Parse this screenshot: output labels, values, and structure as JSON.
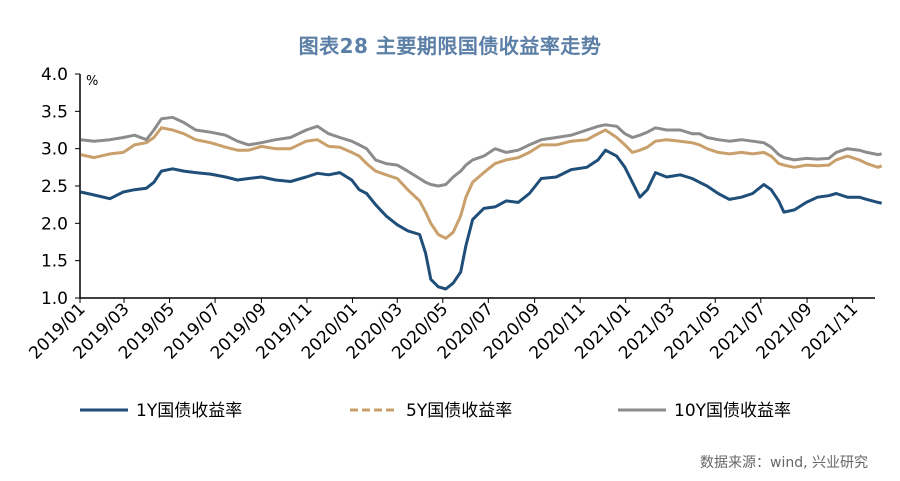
{
  "title": "图表28  主要期限国债收益率走势",
  "source": "数据来源：wind, 兴业研究",
  "chart_data": {
    "type": "line",
    "ylabel": "%",
    "ylim": [
      1.0,
      4.0
    ],
    "yticks": [
      "1.0",
      "1.5",
      "2.0",
      "2.5",
      "3.0",
      "3.5",
      "4.0"
    ],
    "xlim": [
      "2019/01",
      "2021/12"
    ],
    "xticks": [
      "2019/01",
      "2019/03",
      "2019/05",
      "2019/07",
      "2019/09",
      "2019/11",
      "2020/01",
      "2020/03",
      "2020/05",
      "2020/07",
      "2020/09",
      "2020/11",
      "2021/01",
      "2021/03",
      "2021/05",
      "2021/07",
      "2021/09",
      "2021/11"
    ],
    "grid": false,
    "legend_position": "bottom",
    "series": [
      {
        "name": "1Y国债收益率",
        "color": "#1f4e79",
        "points": [
          [
            "2019/01/02",
            2.42
          ],
          [
            "2019/01/20",
            2.38
          ],
          [
            "2019/02/10",
            2.33
          ],
          [
            "2019/02/28",
            2.42
          ],
          [
            "2019/03/15",
            2.45
          ],
          [
            "2019/03/31",
            2.47
          ],
          [
            "2019/04/10",
            2.55
          ],
          [
            "2019/04/20",
            2.7
          ],
          [
            "2019/05/05",
            2.73
          ],
          [
            "2019/05/20",
            2.7
          ],
          [
            "2019/06/05",
            2.68
          ],
          [
            "2019/06/25",
            2.66
          ],
          [
            "2019/07/15",
            2.62
          ],
          [
            "2019/07/31",
            2.58
          ],
          [
            "2019/08/15",
            2.6
          ],
          [
            "2019/09/01",
            2.62
          ],
          [
            "2019/09/20",
            2.58
          ],
          [
            "2019/10/10",
            2.56
          ],
          [
            "2019/10/31",
            2.62
          ],
          [
            "2019/11/15",
            2.67
          ],
          [
            "2019/11/30",
            2.65
          ],
          [
            "2019/12/15",
            2.68
          ],
          [
            "2019/12/31",
            2.58
          ],
          [
            "2020/01/10",
            2.45
          ],
          [
            "2020/01/20",
            2.4
          ],
          [
            "2020/02/01",
            2.25
          ],
          [
            "2020/02/15",
            2.1
          ],
          [
            "2020/03/01",
            1.98
          ],
          [
            "2020/03/15",
            1.9
          ],
          [
            "2020/03/31",
            1.85
          ],
          [
            "2020/04/08",
            1.6
          ],
          [
            "2020/04/15",
            1.25
          ],
          [
            "2020/04/25",
            1.15
          ],
          [
            "2020/05/05",
            1.12
          ],
          [
            "2020/05/15",
            1.2
          ],
          [
            "2020/05/25",
            1.35
          ],
          [
            "2020/06/01",
            1.7
          ],
          [
            "2020/06/10",
            2.05
          ],
          [
            "2020/06/25",
            2.2
          ],
          [
            "2020/07/10",
            2.22
          ],
          [
            "2020/07/25",
            2.3
          ],
          [
            "2020/08/10",
            2.28
          ],
          [
            "2020/08/25",
            2.4
          ],
          [
            "2020/09/10",
            2.6
          ],
          [
            "2020/09/30",
            2.62
          ],
          [
            "2020/10/20",
            2.72
          ],
          [
            "2020/11/10",
            2.75
          ],
          [
            "2020/11/25",
            2.85
          ],
          [
            "2020/12/05",
            2.98
          ],
          [
            "2020/12/20",
            2.9
          ],
          [
            "2020/12/31",
            2.75
          ],
          [
            "2021/01/10",
            2.55
          ],
          [
            "2021/01/20",
            2.35
          ],
          [
            "2021/01/30",
            2.45
          ],
          [
            "2021/02/10",
            2.68
          ],
          [
            "2021/02/25",
            2.62
          ],
          [
            "2021/03/15",
            2.65
          ],
          [
            "2021/03/31",
            2.6
          ],
          [
            "2021/04/10",
            2.55
          ],
          [
            "2021/04/20",
            2.5
          ],
          [
            "2021/05/05",
            2.4
          ],
          [
            "2021/05/20",
            2.32
          ],
          [
            "2021/06/05",
            2.35
          ],
          [
            "2021/06/20",
            2.4
          ],
          [
            "2021/07/05",
            2.52
          ],
          [
            "2021/07/15",
            2.45
          ],
          [
            "2021/07/25",
            2.3
          ],
          [
            "2021/08/01",
            2.15
          ],
          [
            "2021/08/15",
            2.18
          ],
          [
            "2021/08/31",
            2.28
          ],
          [
            "2021/09/15",
            2.35
          ],
          [
            "2021/09/30",
            2.37
          ],
          [
            "2021/10/10",
            2.4
          ],
          [
            "2021/10/25",
            2.35
          ],
          [
            "2021/11/10",
            2.35
          ],
          [
            "2021/11/20",
            2.32
          ],
          [
            "2021/12/05",
            2.28
          ],
          [
            "2021/12/10",
            2.27
          ]
        ]
      },
      {
        "name": "5Y国债收益率",
        "color": "#c9a06c",
        "points": [
          [
            "2019/01/02",
            2.92
          ],
          [
            "2019/01/20",
            2.88
          ],
          [
            "2019/02/10",
            2.93
          ],
          [
            "2019/02/28",
            2.95
          ],
          [
            "2019/03/15",
            3.05
          ],
          [
            "2019/03/31",
            3.08
          ],
          [
            "2019/04/10",
            3.15
          ],
          [
            "2019/04/20",
            3.28
          ],
          [
            "2019/05/05",
            3.25
          ],
          [
            "2019/05/20",
            3.2
          ],
          [
            "2019/06/05",
            3.12
          ],
          [
            "2019/06/25",
            3.08
          ],
          [
            "2019/07/15",
            3.02
          ],
          [
            "2019/07/31",
            2.98
          ],
          [
            "2019/08/15",
            2.98
          ],
          [
            "2019/09/01",
            3.03
          ],
          [
            "2019/09/20",
            3.0
          ],
          [
            "2019/10/10",
            3.0
          ],
          [
            "2019/10/31",
            3.1
          ],
          [
            "2019/11/15",
            3.12
          ],
          [
            "2019/11/30",
            3.03
          ],
          [
            "2019/12/15",
            3.02
          ],
          [
            "2019/12/31",
            2.95
          ],
          [
            "2020/01/10",
            2.9
          ],
          [
            "2020/01/20",
            2.8
          ],
          [
            "2020/02/01",
            2.7
          ],
          [
            "2020/02/15",
            2.65
          ],
          [
            "2020/03/01",
            2.6
          ],
          [
            "2020/03/15",
            2.45
          ],
          [
            "2020/03/31",
            2.3
          ],
          [
            "2020/04/08",
            2.15
          ],
          [
            "2020/04/15",
            2.0
          ],
          [
            "2020/04/25",
            1.85
          ],
          [
            "2020/05/05",
            1.8
          ],
          [
            "2020/05/15",
            1.88
          ],
          [
            "2020/05/25",
            2.1
          ],
          [
            "2020/06/01",
            2.35
          ],
          [
            "2020/06/10",
            2.55
          ],
          [
            "2020/06/25",
            2.68
          ],
          [
            "2020/07/10",
            2.8
          ],
          [
            "2020/07/25",
            2.85
          ],
          [
            "2020/08/10",
            2.88
          ],
          [
            "2020/08/25",
            2.95
          ],
          [
            "2020/09/10",
            3.05
          ],
          [
            "2020/09/30",
            3.05
          ],
          [
            "2020/10/20",
            3.1
          ],
          [
            "2020/11/10",
            3.12
          ],
          [
            "2020/11/25",
            3.2
          ],
          [
            "2020/12/05",
            3.25
          ],
          [
            "2020/12/20",
            3.15
          ],
          [
            "2020/12/31",
            3.05
          ],
          [
            "2021/01/10",
            2.95
          ],
          [
            "2021/01/20",
            2.98
          ],
          [
            "2021/01/30",
            3.02
          ],
          [
            "2021/02/10",
            3.1
          ],
          [
            "2021/02/25",
            3.12
          ],
          [
            "2021/03/15",
            3.1
          ],
          [
            "2021/03/31",
            3.08
          ],
          [
            "2021/04/10",
            3.05
          ],
          [
            "2021/04/20",
            3.0
          ],
          [
            "2021/05/05",
            2.95
          ],
          [
            "2021/05/20",
            2.93
          ],
          [
            "2021/06/05",
            2.95
          ],
          [
            "2021/06/20",
            2.93
          ],
          [
            "2021/07/05",
            2.95
          ],
          [
            "2021/07/15",
            2.9
          ],
          [
            "2021/07/25",
            2.8
          ],
          [
            "2021/08/01",
            2.78
          ],
          [
            "2021/08/15",
            2.75
          ],
          [
            "2021/08/31",
            2.78
          ],
          [
            "2021/09/15",
            2.77
          ],
          [
            "2021/09/30",
            2.78
          ],
          [
            "2021/10/10",
            2.85
          ],
          [
            "2021/10/25",
            2.9
          ],
          [
            "2021/11/10",
            2.85
          ],
          [
            "2021/11/20",
            2.8
          ],
          [
            "2021/12/05",
            2.75
          ],
          [
            "2021/12/10",
            2.77
          ]
        ]
      },
      {
        "name": "10Y国债收益率",
        "color": "#8c8c8c",
        "points": [
          [
            "2019/01/02",
            3.12
          ],
          [
            "2019/01/20",
            3.1
          ],
          [
            "2019/02/10",
            3.12
          ],
          [
            "2019/02/28",
            3.15
          ],
          [
            "2019/03/15",
            3.18
          ],
          [
            "2019/03/31",
            3.12
          ],
          [
            "2019/04/10",
            3.25
          ],
          [
            "2019/04/20",
            3.4
          ],
          [
            "2019/05/05",
            3.42
          ],
          [
            "2019/05/20",
            3.35
          ],
          [
            "2019/06/05",
            3.25
          ],
          [
            "2019/06/25",
            3.22
          ],
          [
            "2019/07/15",
            3.18
          ],
          [
            "2019/07/31",
            3.1
          ],
          [
            "2019/08/15",
            3.05
          ],
          [
            "2019/09/01",
            3.08
          ],
          [
            "2019/09/20",
            3.12
          ],
          [
            "2019/10/10",
            3.15
          ],
          [
            "2019/10/31",
            3.25
          ],
          [
            "2019/11/15",
            3.3
          ],
          [
            "2019/11/30",
            3.2
          ],
          [
            "2019/12/15",
            3.15
          ],
          [
            "2019/12/31",
            3.1
          ],
          [
            "2020/01/10",
            3.05
          ],
          [
            "2020/01/20",
            3.0
          ],
          [
            "2020/02/01",
            2.85
          ],
          [
            "2020/02/15",
            2.8
          ],
          [
            "2020/03/01",
            2.78
          ],
          [
            "2020/03/15",
            2.7
          ],
          [
            "2020/03/31",
            2.6
          ],
          [
            "2020/04/08",
            2.55
          ],
          [
            "2020/04/15",
            2.52
          ],
          [
            "2020/04/25",
            2.5
          ],
          [
            "2020/05/05",
            2.52
          ],
          [
            "2020/05/15",
            2.62
          ],
          [
            "2020/05/25",
            2.7
          ],
          [
            "2020/06/01",
            2.78
          ],
          [
            "2020/06/10",
            2.85
          ],
          [
            "2020/06/25",
            2.9
          ],
          [
            "2020/07/10",
            3.0
          ],
          [
            "2020/07/25",
            2.95
          ],
          [
            "2020/08/10",
            2.98
          ],
          [
            "2020/08/25",
            3.05
          ],
          [
            "2020/09/10",
            3.12
          ],
          [
            "2020/09/30",
            3.15
          ],
          [
            "2020/10/20",
            3.18
          ],
          [
            "2020/11/10",
            3.25
          ],
          [
            "2020/11/25",
            3.3
          ],
          [
            "2020/12/05",
            3.32
          ],
          [
            "2020/12/20",
            3.3
          ],
          [
            "2020/12/31",
            3.2
          ],
          [
            "2021/01/10",
            3.15
          ],
          [
            "2021/01/20",
            3.18
          ],
          [
            "2021/01/30",
            3.22
          ],
          [
            "2021/02/10",
            3.28
          ],
          [
            "2021/02/25",
            3.25
          ],
          [
            "2021/03/15",
            3.25
          ],
          [
            "2021/03/31",
            3.2
          ],
          [
            "2021/04/10",
            3.2
          ],
          [
            "2021/04/20",
            3.15
          ],
          [
            "2021/05/05",
            3.12
          ],
          [
            "2021/05/20",
            3.1
          ],
          [
            "2021/06/05",
            3.12
          ],
          [
            "2021/06/20",
            3.1
          ],
          [
            "2021/07/05",
            3.08
          ],
          [
            "2021/07/15",
            3.02
          ],
          [
            "2021/07/25",
            2.92
          ],
          [
            "2021/08/01",
            2.88
          ],
          [
            "2021/08/15",
            2.85
          ],
          [
            "2021/08/31",
            2.87
          ],
          [
            "2021/09/15",
            2.86
          ],
          [
            "2021/09/30",
            2.87
          ],
          [
            "2021/10/10",
            2.95
          ],
          [
            "2021/10/25",
            3.0
          ],
          [
            "2021/11/10",
            2.98
          ],
          [
            "2021/11/20",
            2.95
          ],
          [
            "2021/12/05",
            2.92
          ],
          [
            "2021/12/10",
            2.93
          ]
        ]
      }
    ]
  }
}
